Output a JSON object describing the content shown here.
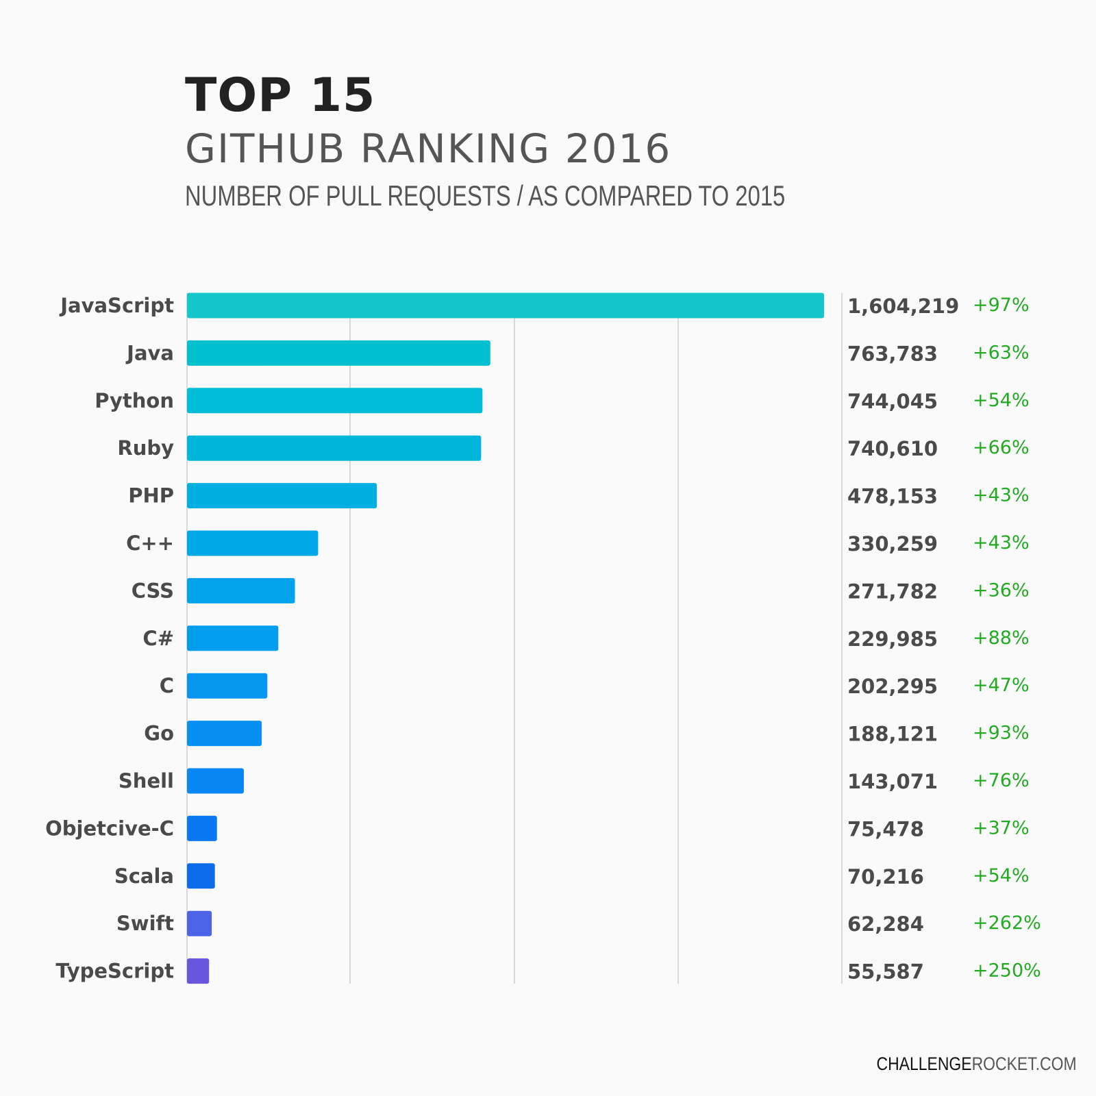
{
  "title": "TOP 15",
  "subtitle": "GITHUB RANKING 2016",
  "description": "NUMBER OF PULL REQUESTS / AS COMPARED TO 2015",
  "footer": {
    "part1": "CHALLENGE",
    "part2": "ROCKET.COM"
  },
  "chart_data": {
    "type": "bar",
    "orientation": "horizontal",
    "grid": true,
    "categories": [
      "JavaScript",
      "Java",
      "Python",
      "Ruby",
      "PHP",
      "C++",
      "CSS",
      "C#",
      "C",
      "Go",
      "Shell",
      "Objetcive-C",
      "Scala",
      "Swift",
      "TypeScript"
    ],
    "values": [
      1604219,
      763783,
      744045,
      740610,
      478153,
      330259,
      271782,
      229985,
      202295,
      188121,
      143071,
      75478,
      70216,
      62284,
      55587
    ],
    "value_labels": [
      "1,604,219",
      "763,783",
      "744,045",
      "740,610",
      "478,153",
      "330,259",
      "271,782",
      "229,985",
      "202,295",
      "188,121",
      "143,071",
      "75,478",
      "70,216",
      "62,284",
      "55,587"
    ],
    "change_labels": [
      "+97%",
      "+63%",
      "+54%",
      "+66%",
      "+43%",
      "+43%",
      "+36%",
      "+88%",
      "+47%",
      "+93%",
      "+76%",
      "+37%",
      "+54%",
      "+262%",
      "+250%"
    ],
    "colors": [
      "#14c5c9",
      "#00c0cf",
      "#00bcd6",
      "#00b6da",
      "#00aee0",
      "#00a8e6",
      "#03a3eb",
      "#039dee",
      "#0796ef",
      "#0790f2",
      "#0886f4",
      "#0a78f0",
      "#0e6cea",
      "#4d63e8",
      "#6a55de"
    ],
    "change_color": "#22aa22",
    "label_color": "#4a4a4a"
  }
}
